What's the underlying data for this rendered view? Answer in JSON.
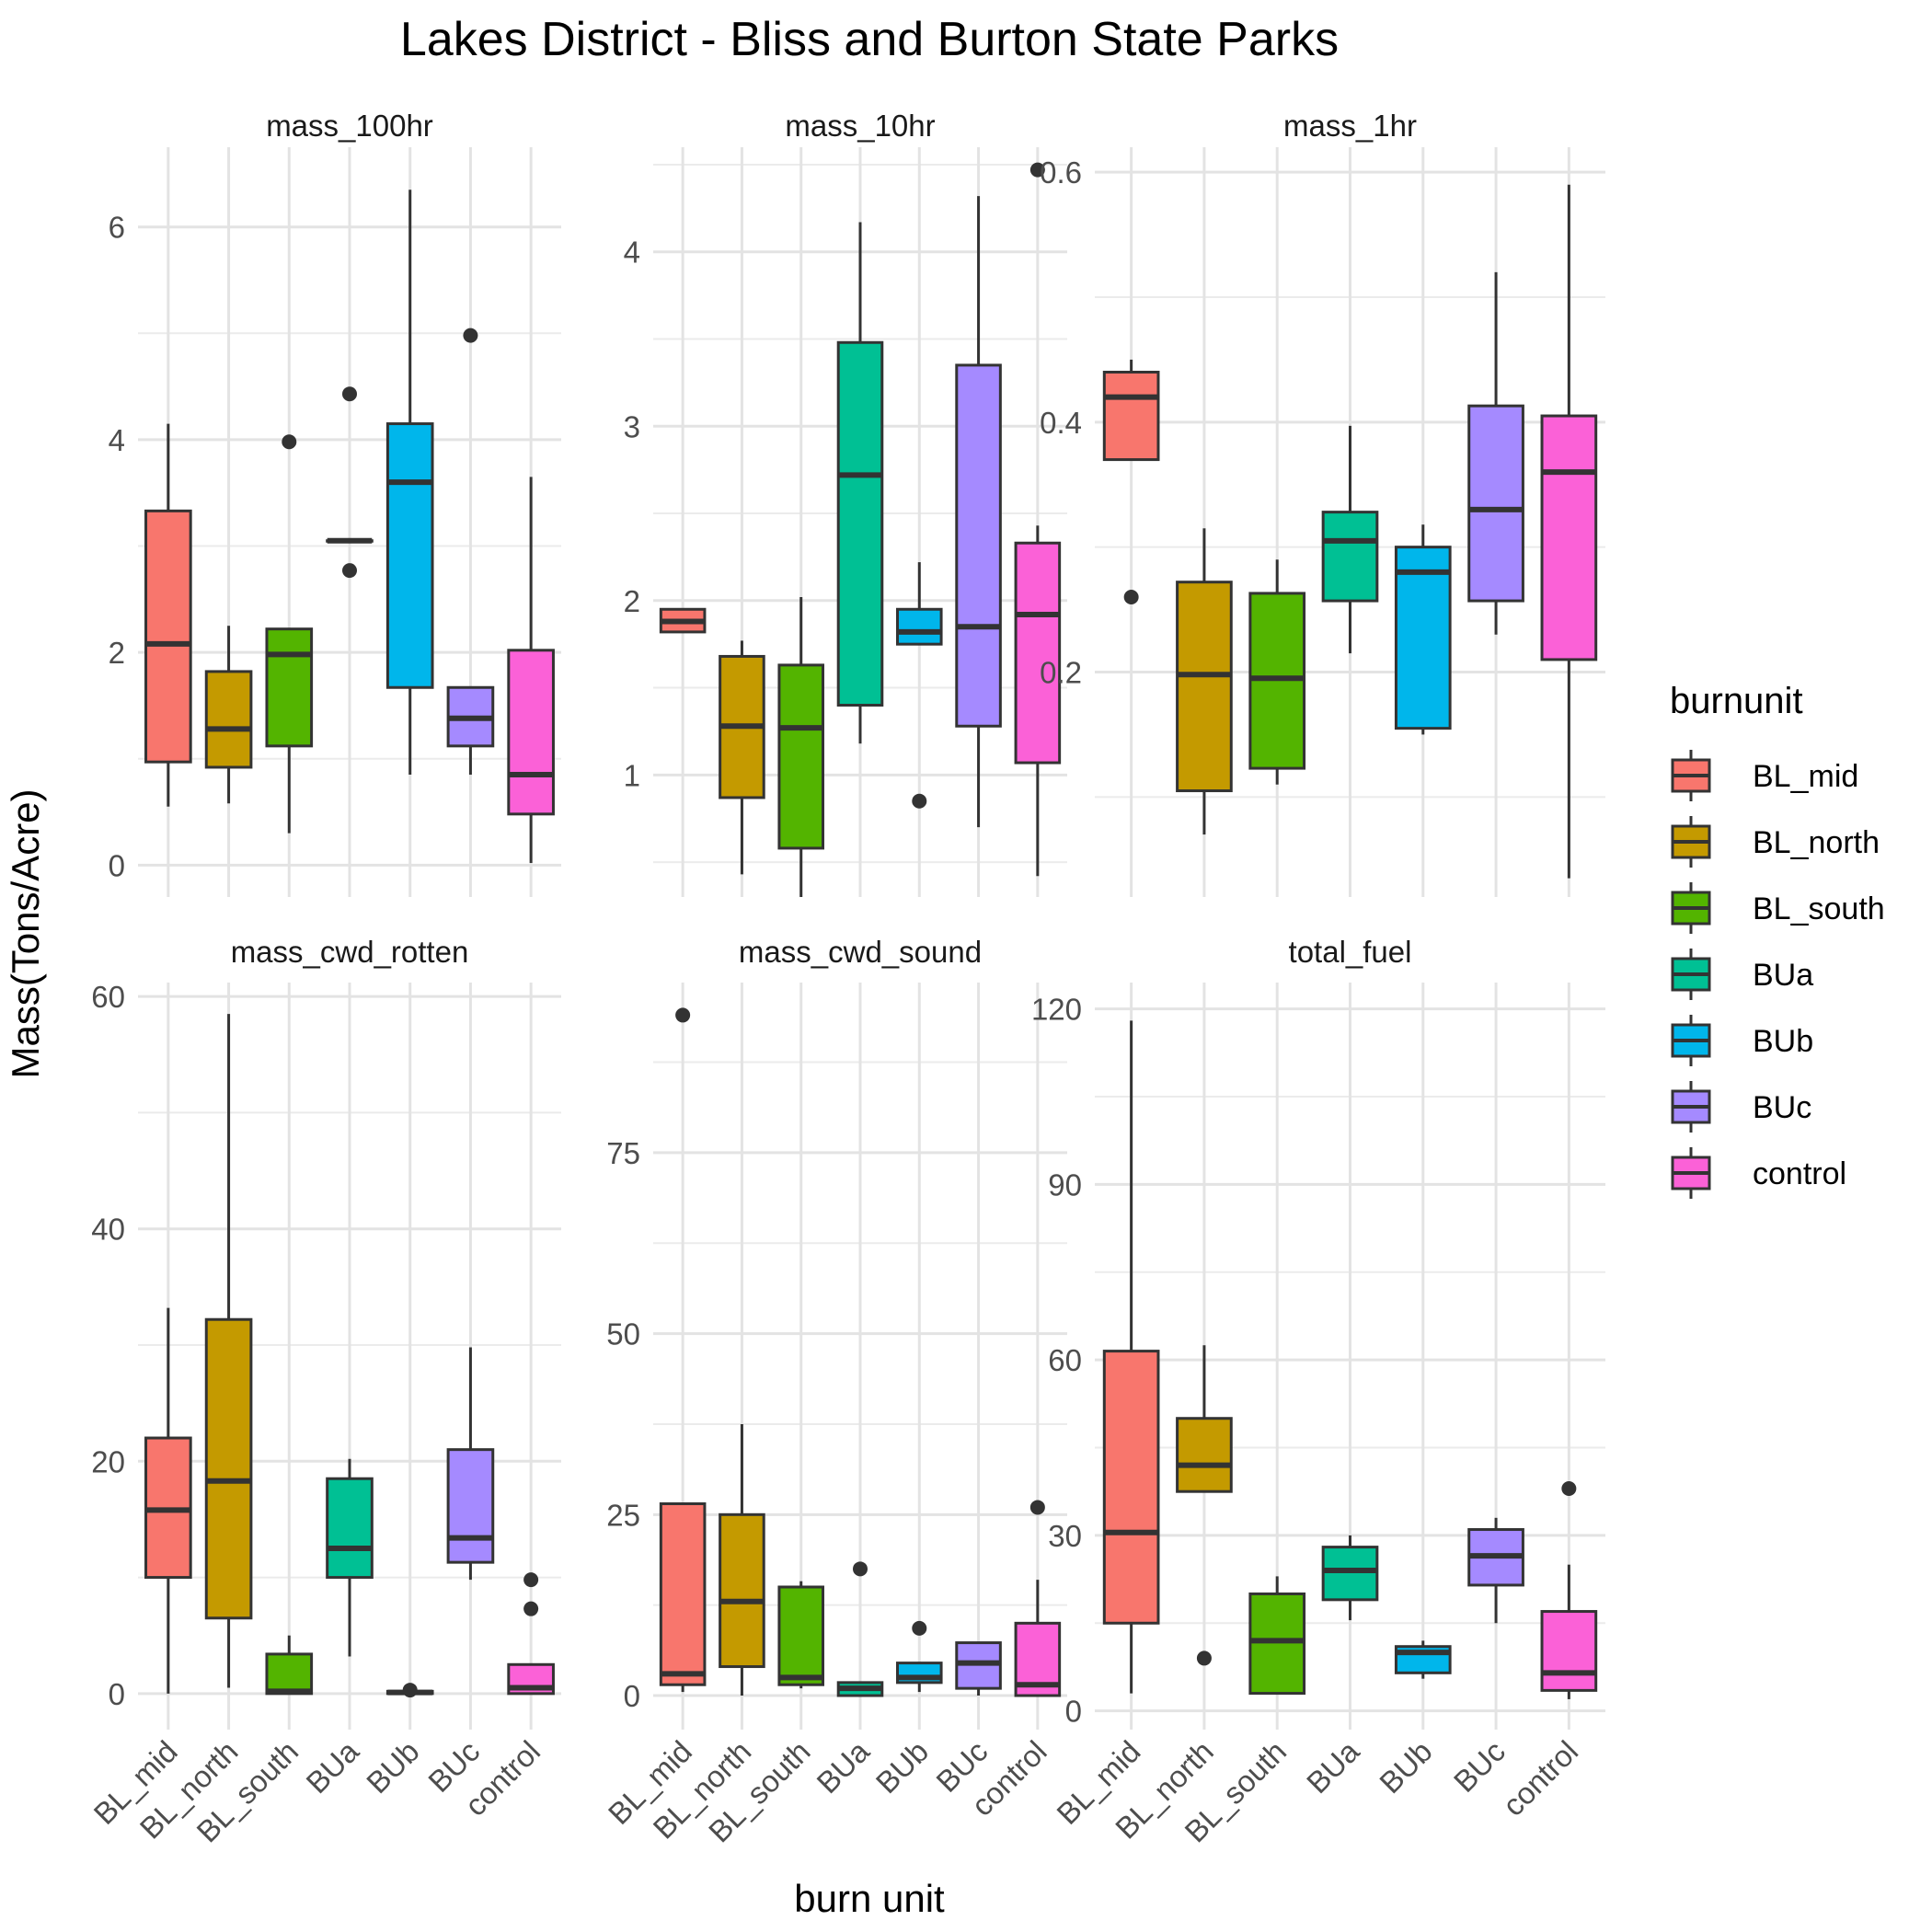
{
  "title": "Lakes District - Bliss and Burton State Parks",
  "xlabel": "burn unit",
  "ylabel": "Mass(Tons/Acre)",
  "legend": {
    "title": "burnunit",
    "position": "right",
    "items": [
      "BL_mid",
      "BL_north",
      "BL_south",
      "BUa",
      "BUb",
      "BUc",
      "control"
    ]
  },
  "colors": {
    "BL_mid": "#F8766D",
    "BL_north": "#C49A00",
    "BL_south": "#53B400",
    "BUa": "#00C094",
    "BUb": "#00B6EB",
    "BUc": "#A58AFF",
    "control": "#FB61D7"
  },
  "chart_data": {
    "type": "boxplot",
    "categories": [
      "BL_mid",
      "BL_north",
      "BL_south",
      "BUa",
      "BUb",
      "BUc",
      "control"
    ],
    "grid": true,
    "panels": [
      {
        "name": "mass_100hr",
        "ylim": [
          -0.3,
          6.75
        ],
        "yticks": [
          0,
          2,
          4,
          6
        ],
        "yminor": [
          1,
          3,
          5
        ],
        "boxes": [
          {
            "group": "BL_mid",
            "lo": 0.55,
            "q1": 0.97,
            "med": 2.08,
            "q3": 3.33,
            "hi": 4.15,
            "out": []
          },
          {
            "group": "BL_north",
            "lo": 0.58,
            "q1": 0.92,
            "med": 1.28,
            "q3": 1.82,
            "hi": 2.25,
            "out": []
          },
          {
            "group": "BL_south",
            "lo": 0.3,
            "q1": 1.12,
            "med": 1.98,
            "q3": 2.22,
            "hi": 2.22,
            "out": [
              3.98
            ]
          },
          {
            "group": "BUa",
            "lo": 3.05,
            "q1": 3.05,
            "med": 3.05,
            "q3": 3.05,
            "hi": 3.05,
            "out": [
              4.43,
              2.77
            ]
          },
          {
            "group": "BUb",
            "lo": 0.85,
            "q1": 1.67,
            "med": 3.6,
            "q3": 4.15,
            "hi": 6.35,
            "out": []
          },
          {
            "group": "BUc",
            "lo": 0.85,
            "q1": 1.12,
            "med": 1.38,
            "q3": 1.67,
            "hi": 1.67,
            "out": [
              4.98
            ]
          },
          {
            "group": "control",
            "lo": 0.02,
            "q1": 0.48,
            "med": 0.85,
            "q3": 2.02,
            "hi": 3.65,
            "out": []
          }
        ]
      },
      {
        "name": "mass_10hr",
        "ylim": [
          0.3,
          4.6
        ],
        "yticks": [
          1,
          2,
          3,
          4
        ],
        "yminor": [
          0.5,
          1.5,
          2.5,
          3.5,
          4.5
        ],
        "boxes": [
          {
            "group": "BL_mid",
            "lo": 1.82,
            "q1": 1.82,
            "med": 1.88,
            "q3": 1.95,
            "hi": 1.95,
            "out": []
          },
          {
            "group": "BL_north",
            "lo": 0.43,
            "q1": 0.87,
            "med": 1.28,
            "q3": 1.68,
            "hi": 1.77,
            "out": []
          },
          {
            "group": "BL_south",
            "lo": 0.3,
            "q1": 0.58,
            "med": 1.27,
            "q3": 1.63,
            "hi": 2.02,
            "out": []
          },
          {
            "group": "BUa",
            "lo": 1.18,
            "q1": 1.4,
            "med": 2.72,
            "q3": 3.48,
            "hi": 4.17,
            "out": []
          },
          {
            "group": "BUb",
            "lo": 1.75,
            "q1": 1.75,
            "med": 1.82,
            "q3": 1.95,
            "hi": 2.22,
            "out": [
              0.85
            ]
          },
          {
            "group": "BUc",
            "lo": 0.7,
            "q1": 1.28,
            "med": 1.85,
            "q3": 3.35,
            "hi": 4.32,
            "out": []
          },
          {
            "group": "control",
            "lo": 0.42,
            "q1": 1.07,
            "med": 1.92,
            "q3": 2.33,
            "hi": 2.43,
            "out": [
              4.47
            ]
          }
        ]
      },
      {
        "name": "mass_1hr",
        "ylim": [
          0.02,
          0.62
        ],
        "yticks": [
          0.2,
          0.4,
          0.6
        ],
        "yminor": [
          0.1,
          0.3,
          0.5
        ],
        "boxes": [
          {
            "group": "BL_mid",
            "lo": 0.37,
            "q1": 0.37,
            "med": 0.42,
            "q3": 0.44,
            "hi": 0.45,
            "out": [
              0.26
            ]
          },
          {
            "group": "BL_north",
            "lo": 0.07,
            "q1": 0.105,
            "med": 0.198,
            "q3": 0.272,
            "hi": 0.315,
            "out": []
          },
          {
            "group": "BL_south",
            "lo": 0.11,
            "q1": 0.123,
            "med": 0.195,
            "q3": 0.263,
            "hi": 0.29,
            "out": []
          },
          {
            "group": "BUa",
            "lo": 0.215,
            "q1": 0.257,
            "med": 0.305,
            "q3": 0.328,
            "hi": 0.397,
            "out": []
          },
          {
            "group": "BUb",
            "lo": 0.15,
            "q1": 0.155,
            "med": 0.28,
            "q3": 0.3,
            "hi": 0.318,
            "out": []
          },
          {
            "group": "BUc",
            "lo": 0.23,
            "q1": 0.257,
            "med": 0.33,
            "q3": 0.413,
            "hi": 0.52,
            "out": []
          },
          {
            "group": "control",
            "lo": 0.035,
            "q1": 0.21,
            "med": 0.36,
            "q3": 0.405,
            "hi": 0.59,
            "out": []
          }
        ]
      },
      {
        "name": "mass_cwd_rotten",
        "ylim": [
          -3.1,
          61.2
        ],
        "yticks": [
          0,
          20,
          40,
          60
        ],
        "yminor": [
          10,
          30,
          50
        ],
        "boxes": [
          {
            "group": "BL_mid",
            "lo": 0.0,
            "q1": 10.0,
            "med": 15.8,
            "q3": 22.0,
            "hi": 33.2,
            "out": []
          },
          {
            "group": "BL_north",
            "lo": 0.5,
            "q1": 6.5,
            "med": 18.3,
            "q3": 32.2,
            "hi": 58.5,
            "out": []
          },
          {
            "group": "BL_south",
            "lo": 0.0,
            "q1": 0.0,
            "med": 0.2,
            "q3": 3.4,
            "hi": 5.0,
            "out": []
          },
          {
            "group": "BUa",
            "lo": 3.2,
            "q1": 10.0,
            "med": 12.5,
            "q3": 18.5,
            "hi": 20.2,
            "out": []
          },
          {
            "group": "BUb",
            "lo": 0.0,
            "q1": 0.0,
            "med": 0.1,
            "q3": 0.2,
            "hi": 0.3,
            "out": [
              0.3
            ]
          },
          {
            "group": "BUc",
            "lo": 9.8,
            "q1": 11.3,
            "med": 13.4,
            "q3": 21.0,
            "hi": 29.8,
            "out": []
          },
          {
            "group": "control",
            "lo": 0.0,
            "q1": 0.0,
            "med": 0.5,
            "q3": 2.5,
            "hi": 2.5,
            "out": [
              9.8,
              7.3
            ]
          }
        ]
      },
      {
        "name": "mass_cwd_sound",
        "ylim": [
          -4.7,
          98.5
        ],
        "yticks": [
          0,
          25,
          50,
          75
        ],
        "yminor": [
          12.5,
          37.5,
          62.5,
          87.5
        ],
        "boxes": [
          {
            "group": "BL_mid",
            "lo": 0.5,
            "q1": 1.5,
            "med": 3.0,
            "q3": 26.5,
            "hi": 26.5,
            "out": [
              94.0
            ]
          },
          {
            "group": "BL_north",
            "lo": 0.0,
            "q1": 4.0,
            "med": 13.0,
            "q3": 25.0,
            "hi": 37.5,
            "out": []
          },
          {
            "group": "BL_south",
            "lo": 1.0,
            "q1": 1.5,
            "med": 2.5,
            "q3": 15.0,
            "hi": 15.8,
            "out": []
          },
          {
            "group": "BUa",
            "lo": 0.0,
            "q1": 0.0,
            "med": 1.0,
            "q3": 1.8,
            "hi": 1.8,
            "out": [
              17.5
            ]
          },
          {
            "group": "BUb",
            "lo": 0.5,
            "q1": 1.8,
            "med": 2.5,
            "q3": 4.5,
            "hi": 4.5,
            "out": [
              9.3
            ]
          },
          {
            "group": "BUc",
            "lo": 0.0,
            "q1": 1.0,
            "med": 4.5,
            "q3": 7.3,
            "hi": 7.3,
            "out": []
          },
          {
            "group": "control",
            "lo": 0.0,
            "q1": 0.0,
            "med": 1.5,
            "q3": 10.0,
            "hi": 16.0,
            "out": [
              26.0
            ]
          }
        ]
      },
      {
        "name": "total_fuel",
        "ylim": [
          -3.2,
          124.5
        ],
        "yticks": [
          0,
          30,
          60,
          90,
          120
        ],
        "yminor": [
          15,
          45,
          75,
          105
        ],
        "boxes": [
          {
            "group": "BL_mid",
            "lo": 3.0,
            "q1": 15.0,
            "med": 30.5,
            "q3": 61.5,
            "hi": 118.0,
            "out": []
          },
          {
            "group": "BL_north",
            "lo": 37.5,
            "q1": 37.5,
            "med": 42.0,
            "q3": 50.0,
            "hi": 62.5,
            "out": [
              9.0
            ]
          },
          {
            "group": "BL_south",
            "lo": 3.0,
            "q1": 3.0,
            "med": 12.0,
            "q3": 20.0,
            "hi": 23.0,
            "out": []
          },
          {
            "group": "BUa",
            "lo": 15.5,
            "q1": 19.0,
            "med": 24.0,
            "q3": 28.0,
            "hi": 30.0,
            "out": []
          },
          {
            "group": "BUb",
            "lo": 5.5,
            "q1": 6.5,
            "med": 10.0,
            "q3": 11.0,
            "hi": 12.0,
            "out": []
          },
          {
            "group": "BUc",
            "lo": 15.0,
            "q1": 21.5,
            "med": 26.5,
            "q3": 31.0,
            "hi": 33.0,
            "out": []
          },
          {
            "group": "control",
            "lo": 2.0,
            "q1": 3.5,
            "med": 6.5,
            "q3": 17.0,
            "hi": 25.0,
            "out": [
              38.0
            ]
          }
        ]
      }
    ]
  }
}
